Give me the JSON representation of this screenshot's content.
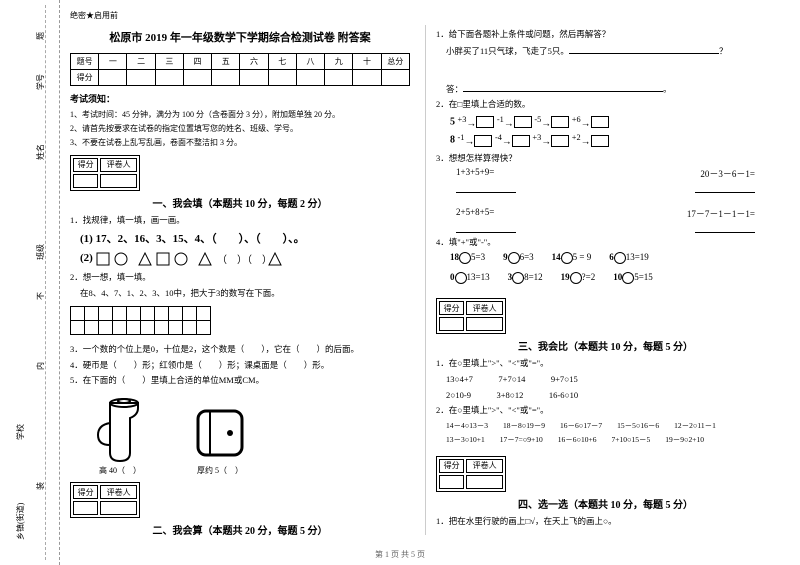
{
  "binding": {
    "xiang": "乡镇(街道)",
    "xuexiao": "学校",
    "banji": "班级",
    "xingming": "姓名",
    "xuehao": "学号",
    "zhuang": "装",
    "nei": "内",
    "bu": "不",
    "ti": "题"
  },
  "header": {
    "secret": "绝密★启用前",
    "title": "松原市 2019 年一年级数学下学期综合检测试卷 附答案"
  },
  "score_headers": [
    "题号",
    "一",
    "二",
    "三",
    "四",
    "五",
    "六",
    "七",
    "八",
    "九",
    "十",
    "总分"
  ],
  "score_row_label": "得分",
  "notice_title": "考试须知：",
  "notices": [
    "1、考试时间：45 分钟，满分为 100 分（含卷面分 3 分），附加题单独 20 分。",
    "2、请首先按要求在试卷的指定位置填写您的姓名、班级、学号。",
    "3、不要在试卷上乱写乱画，卷面不整洁扣 3 分。"
  ],
  "scorebox": {
    "h1": "得分",
    "h2": "评卷人"
  },
  "sections": {
    "s1": "一、我会填（本题共 10 分，每题 2 分）",
    "s2": "二、我会算（本题共 20 分，每题 5 分）",
    "s3": "三、我会比（本题共 10 分，每题 5 分）",
    "s4": "四、选一选（本题共 10 分，每题 5 分）"
  },
  "q_left": {
    "q1": "1．找规律，填一填，画一画。",
    "seq1_label": "(1)",
    "seq1": "17、2、16、3、15、4、（　　）、（　　）、。",
    "seq2_label": "(2)",
    "q2": "2．想一想，填一填。",
    "q2_sub": "在8、4、7、1、2、3、10中，把大于3的数写在下面。",
    "q3": "3．一个数的个位上是0，十位是2，这个数是（　　），它在（　　）的后面。",
    "q4": "4．硬币是（　　）形；红领巾是（　　）形；课桌面是（　　）形。",
    "q5": "5．在下面的（　　）里填上合适的单位MM或CM。",
    "pitcher_label": "高 40（　）",
    "wallet_label": "厚约 5（　）"
  },
  "q_right": {
    "r1": "1．给下面各题补上条件或问题，然后再解答？",
    "r1_sub": "小胖买了11只气球，飞走了5只。",
    "r1_q": "？",
    "r1_ans": "答：",
    "r2": "2．在□里填上合适的数。",
    "arrow1": {
      "start": "5",
      "o1": "+3",
      "o2": "-1",
      "o3": "-5",
      "o4": "+6"
    },
    "arrow2": {
      "start": "8",
      "o1": "-1",
      "o2": "-4",
      "o3": "+3",
      "o4": "+2"
    },
    "r3": "3．想想怎样算得快？",
    "r3_e": [
      "1+3+5+9=",
      "20－3－6－1="
    ],
    "r3_e2": [
      "2+5+8+5=",
      "17－7－1－1－1="
    ],
    "r4": "4．填\"+\"或\"-\"。",
    "r4_rows": [
      [
        "18",
        "5=3",
        "9",
        "6=3",
        "14",
        "5 = 9",
        "6",
        "13=19"
      ],
      [
        "0",
        "13=13",
        "3",
        "8=12",
        "19",
        "?=2",
        "10",
        "5=15"
      ]
    ],
    "s3_q1": "1．在○里填上\">\"、\"<\"或\"=\"。",
    "s3_q1_lines": [
      "13○4+7　　　7+7○14　　　9+7○15",
      "2○10-9　　　3+8○12　　　16-6○10"
    ],
    "s3_q2": "2．在○里填上\">\"、\"<\"或\"=\"。",
    "s3_q2_lines": [
      "14－4○13－3　　18－8○19－9　　16－6○17－7　　15－5○16－6　　12－2○11－1",
      "13－3○10+1　　17－7=○9+10　　16－6○10+6　　7+10○15－5　　19－9○2+10"
    ],
    "s4_q1": "1．把在水里行驶的画上□√，在天上飞的画上○。"
  },
  "footer": "第 1 页 共 5 页"
}
